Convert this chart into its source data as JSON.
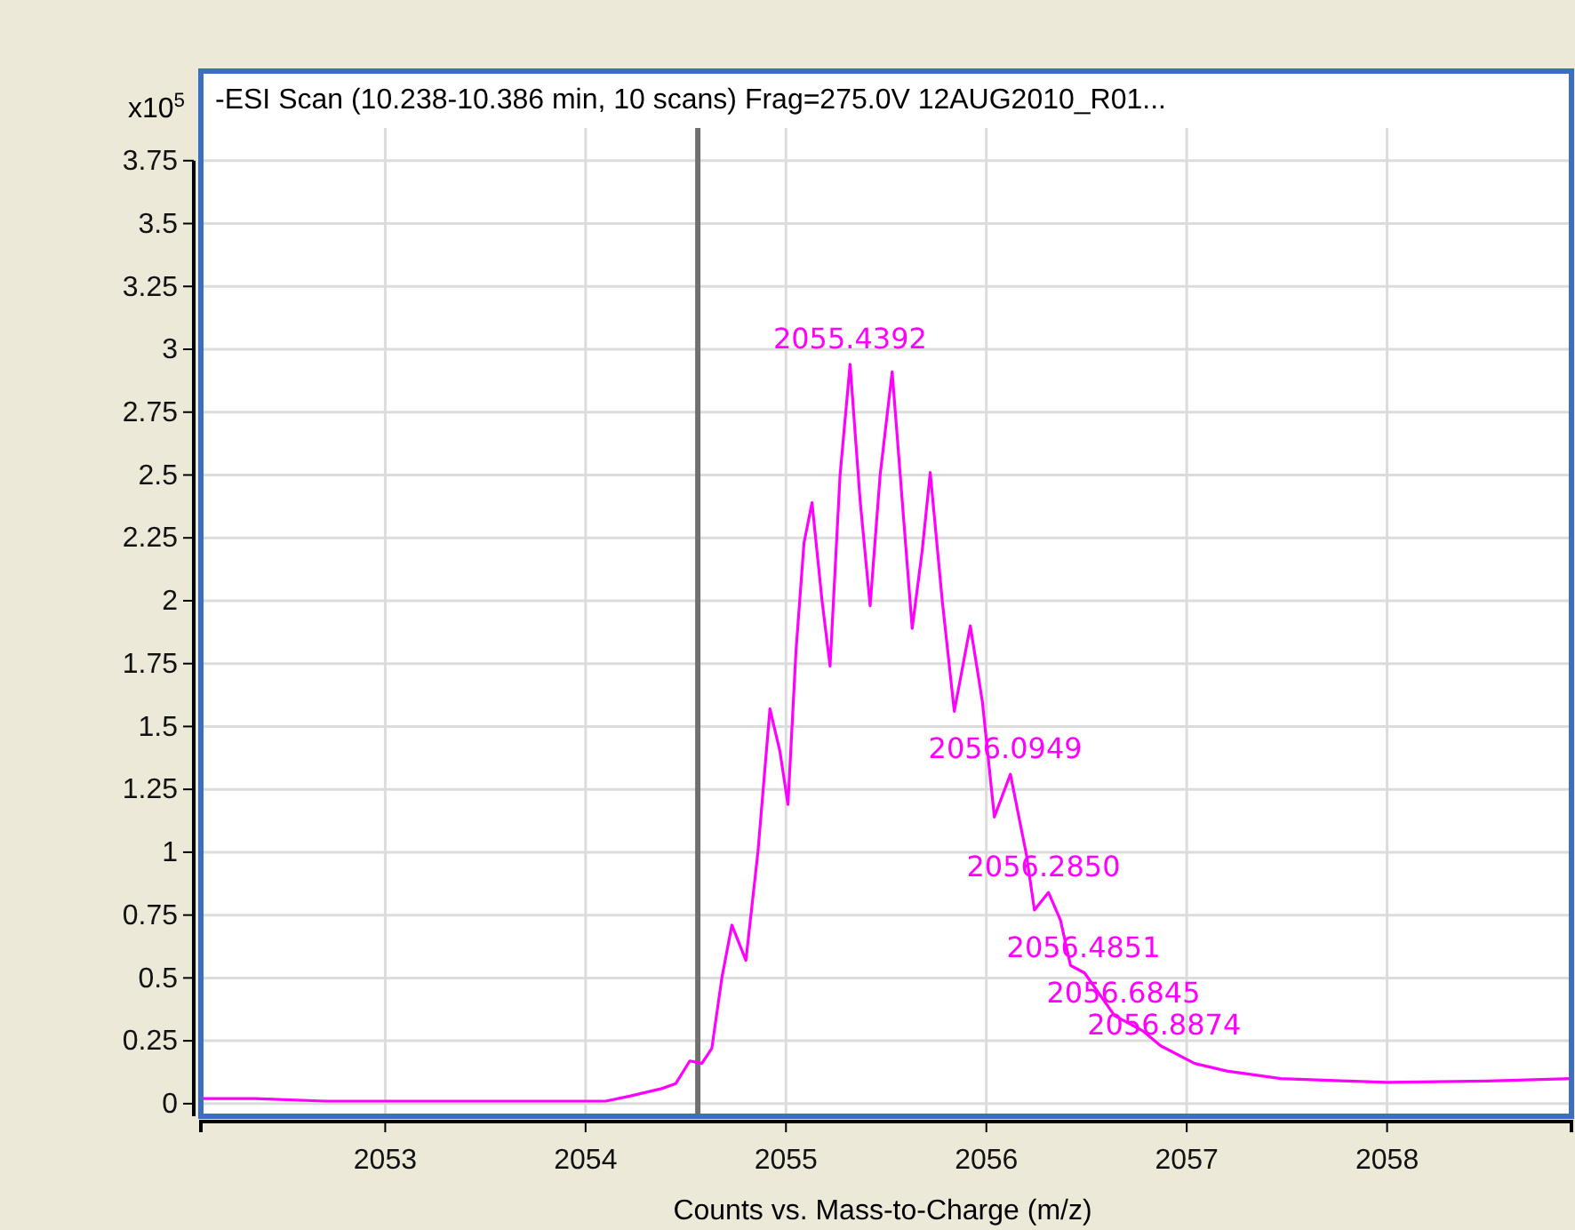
{
  "chart_data": {
    "type": "line",
    "title": "-ESI Scan (10.238-10.386 min, 10 scans) Frag=275.0V 12AUG2010_R01...",
    "xlabel": "Counts vs. Mass-to-Charge (m/z)",
    "ylabel": "x10$^{5}$",
    "xlim": [
      2052.08,
      2058.92
    ],
    "xticks": [
      2053,
      2054,
      2055,
      2056,
      2057,
      2058
    ],
    "ylim": [
      -0.05,
      3.88
    ],
    "yticks": [
      0,
      0.25,
      0.5,
      0.75,
      1,
      1.25,
      1.5,
      1.75,
      2,
      2.25,
      2.5,
      2.75,
      3,
      3.25,
      3.5,
      3.75
    ],
    "grid": true,
    "marker": "none",
    "line_style": "solid",
    "series": [
      {
        "color": "#ff00ff",
        "x": [
          2052.08,
          2052.35,
          2052.7,
          2053.2,
          2053.7,
          2054.1,
          2054.22,
          2054.38,
          2054.45,
          2054.52,
          2054.58,
          2054.63,
          2054.68,
          2054.73,
          2054.8,
          2054.86,
          2054.92,
          2054.97,
          2055.01,
          2055.05,
          2055.09,
          2055.13,
          2055.18,
          2055.22,
          2055.27,
          2055.32,
          2055.37,
          2055.42,
          2055.47,
          2055.53,
          2055.58,
          2055.63,
          2055.68,
          2055.72,
          2055.78,
          2055.84,
          2055.92,
          2055.98,
          2056.04,
          2056.12,
          2056.2,
          2056.24,
          2056.31,
          2056.37,
          2056.42,
          2056.49,
          2056.64,
          2056.78,
          2056.87,
          2057.04,
          2057.2,
          2057.47,
          2057.8,
          2058.0,
          2058.5,
          2058.92
        ],
        "values": [
          0.02,
          0.02,
          0.01,
          0.01,
          0.01,
          0.01,
          0.03,
          0.06,
          0.08,
          0.17,
          0.16,
          0.22,
          0.5,
          0.71,
          0.57,
          1.0,
          1.57,
          1.4,
          1.19,
          1.8,
          2.23,
          2.39,
          2.0,
          1.74,
          2.5,
          2.94,
          2.4,
          1.98,
          2.5,
          2.91,
          2.4,
          1.89,
          2.2,
          2.51,
          2.0,
          1.56,
          1.9,
          1.6,
          1.14,
          1.31,
          0.99,
          0.77,
          0.84,
          0.73,
          0.55,
          0.52,
          0.35,
          0.29,
          0.23,
          0.16,
          0.13,
          0.1,
          0.09,
          0.085,
          0.09,
          0.1
        ]
      }
    ],
    "ref_lines": [
      {
        "axis": "x",
        "value": 2054.56,
        "color": "#707070"
      }
    ],
    "annotations": [
      {
        "text": "2055.4392",
        "x": 2055.32,
        "y": 2.94
      },
      {
        "text": "2056.0949",
        "x": 2056.0949,
        "y": 1.31
      },
      {
        "text": "2056.2850",
        "x": 2056.285,
        "y": 0.84
      },
      {
        "text": "2056.4851",
        "x": 2056.4851,
        "y": 0.52
      },
      {
        "text": "2056.6845",
        "x": 2056.6845,
        "y": 0.34
      },
      {
        "text": "2056.8874",
        "x": 2056.8874,
        "y": 0.21
      }
    ]
  }
}
